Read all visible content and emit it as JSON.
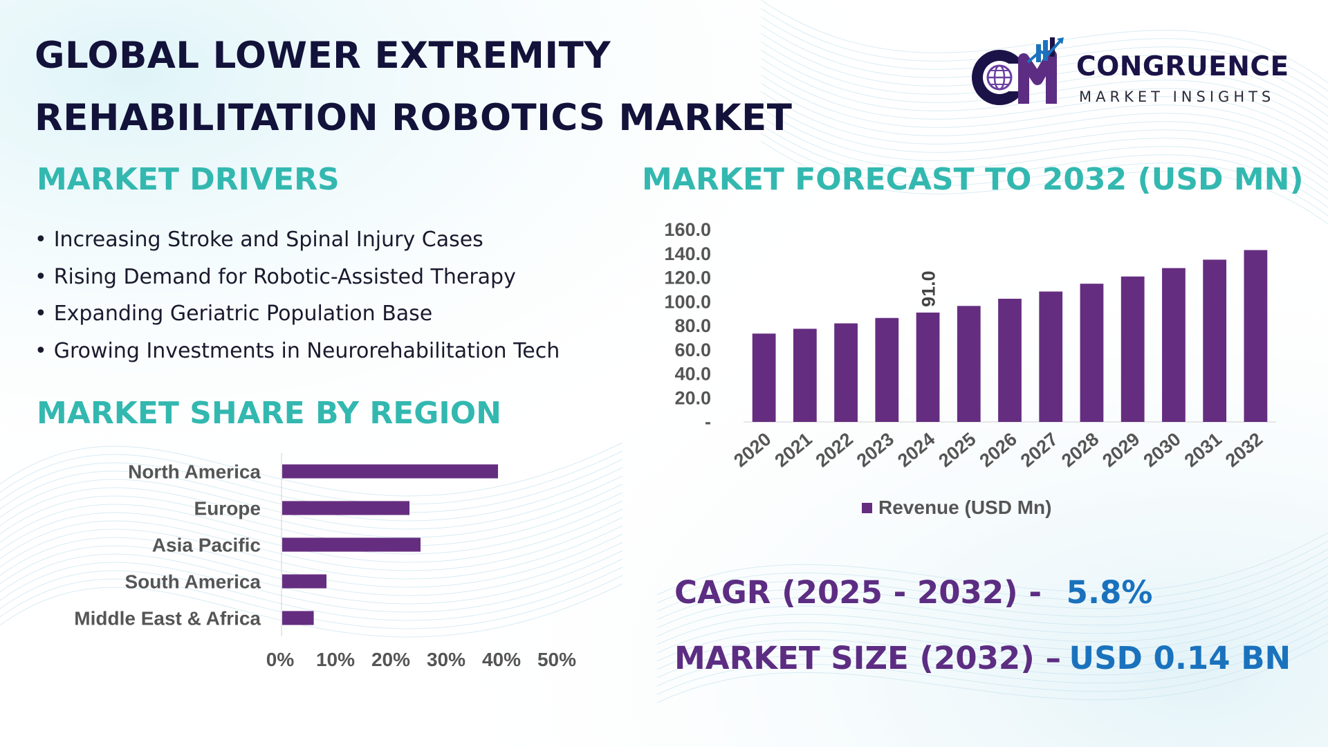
{
  "title": {
    "line1": "GLOBAL LOWER EXTREMITY",
    "line2": "REHABILITATION ROBOTICS MARKET"
  },
  "brand": {
    "logo_icon": "cm-globe-growth-logo",
    "logo_letters": "CM",
    "name": "CONGRUENCE",
    "tagline": "MARKET INSIGHTS",
    "colors": {
      "navy": "#1b1347",
      "purple": "#5c2d82",
      "blue": "#1a72bd"
    }
  },
  "drivers": {
    "heading": "MARKET DRIVERS",
    "items": [
      "Increasing Stroke and Spinal Injury Cases",
      "Rising Demand for Robotic-Assisted Therapy",
      "Expanding Geriatric Population Base",
      "Growing Investments in Neurorehabilitation Tech"
    ]
  },
  "region": {
    "heading": "MARKET SHARE BY REGION"
  },
  "forecast": {
    "heading": "MARKET FORECAST TO 2032 (USD MN)"
  },
  "stats": {
    "cagr_label": "CAGR (2025 - 2032) -",
    "cagr_value": "5.8%",
    "size_label": "MARKET SIZE (2032) –",
    "size_value": "USD 0.14 BN"
  },
  "colors": {
    "heading_teal": "#33b8b0",
    "title_navy": "#12123a",
    "bar_purple": "#652d80",
    "stat_purple": "#5c2d82",
    "stat_blue": "#1a72bd",
    "axis_text": "#555555"
  },
  "chart_data": [
    {
      "type": "bar",
      "orientation": "vertical",
      "categories": [
        "2020",
        "2021",
        "2022",
        "2023",
        "2024",
        "2025",
        "2026",
        "2027",
        "2028",
        "2029",
        "2030",
        "2031",
        "2032"
      ],
      "series": [
        {
          "name": "Revenue (USD Mn)",
          "values": [
            73.5,
            77.5,
            82,
            86.5,
            91.0,
            96.5,
            102.5,
            108.5,
            115,
            121,
            128,
            135,
            143
          ]
        }
      ],
      "ylim": [
        0,
        160
      ],
      "yticks": [
        {
          "value": 0,
          "label": "-"
        },
        {
          "value": 20,
          "label": "20.0"
        },
        {
          "value": 40,
          "label": "40.0"
        },
        {
          "value": 60,
          "label": "60.0"
        },
        {
          "value": 80,
          "label": "80.0"
        },
        {
          "value": 100,
          "label": "100.0"
        },
        {
          "value": 120,
          "label": "120.0"
        },
        {
          "value": 140,
          "label": "140.0"
        },
        {
          "value": 160,
          "label": "160.0"
        }
      ],
      "data_labels": [
        {
          "category": "2024",
          "label": "91.0"
        }
      ],
      "legend": {
        "position": "bottom",
        "label": "Revenue (USD Mn)"
      },
      "grid": false,
      "xlabel": "",
      "ylabel": ""
    },
    {
      "type": "bar",
      "orientation": "horizontal",
      "categories": [
        "North America",
        "Europe",
        "Asia Pacific",
        "South America",
        "Middle East & Africa"
      ],
      "values": [
        39,
        23,
        25,
        8,
        5.7
      ],
      "xlim": [
        0,
        50
      ],
      "xticks": [
        "0%",
        "10%",
        "20%",
        "30%",
        "40%",
        "50%"
      ],
      "grid": false,
      "xlabel": "",
      "ylabel": ""
    }
  ]
}
